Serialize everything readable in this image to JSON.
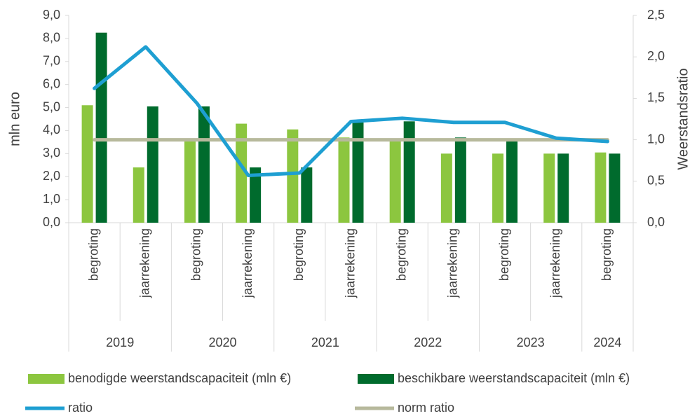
{
  "chart_data": {
    "type": "combo",
    "y_label": "mln euro",
    "y2_label": "Weerstandsratio",
    "groups": [
      {
        "name": "2019",
        "categories": [
          "begroting",
          "jaarrekening"
        ]
      },
      {
        "name": "2020",
        "categories": [
          "begroting",
          "jaarrekening"
        ]
      },
      {
        "name": "2021",
        "categories": [
          "begroting",
          "jaarrekening"
        ]
      },
      {
        "name": "2022",
        "categories": [
          "begroting",
          "jaarrekening"
        ]
      },
      {
        "name": "2023",
        "categories": [
          "begroting",
          "jaarrekening"
        ]
      },
      {
        "name": "2024",
        "categories": [
          "begroting"
        ]
      }
    ],
    "series": [
      {
        "name": "benodigde weerstandscapaciteit (mln €)",
        "type": "bar",
        "color": "#8cc63f",
        "values": [
          5.1,
          2.4,
          3.6,
          4.3,
          4.05,
          3.7,
          3.6,
          3.0,
          3.0,
          3.0,
          3.05
        ]
      },
      {
        "name": "beschikbare weerstandscapaciteit (mln €)",
        "type": "bar",
        "color": "#006b2d",
        "values": [
          8.25,
          5.05,
          5.05,
          2.4,
          2.4,
          4.35,
          4.4,
          3.7,
          3.6,
          3.0,
          3.0
        ]
      },
      {
        "name": "ratio",
        "type": "line",
        "axis": "y2",
        "color": "#1e9fd2",
        "values": [
          1.62,
          2.12,
          1.44,
          0.57,
          0.6,
          1.22,
          1.26,
          1.21,
          1.21,
          1.02,
          0.98
        ]
      },
      {
        "name": "norm ratio",
        "type": "line",
        "axis": "y2",
        "color": "#b7b99c",
        "values": [
          1.0,
          1.0,
          1.0,
          1.0,
          1.0,
          1.0,
          1.0,
          1.0,
          1.0,
          1.0,
          1.0
        ]
      }
    ],
    "ylim": [
      0,
      9
    ],
    "yticks": [
      {
        "value": 0,
        "label": "0,0"
      },
      {
        "value": 1,
        "label": "1,0"
      },
      {
        "value": 2,
        "label": "2,0"
      },
      {
        "value": 3,
        "label": "3,0"
      },
      {
        "value": 4,
        "label": "4,0"
      },
      {
        "value": 5,
        "label": "5,0"
      },
      {
        "value": 6,
        "label": "6,0"
      },
      {
        "value": 7,
        "label": "7,0"
      },
      {
        "value": 8,
        "label": "8,0"
      },
      {
        "value": 9,
        "label": "9,0"
      }
    ],
    "y2lim": [
      0,
      2.5
    ],
    "y2ticks": [
      {
        "value": 0,
        "label": "0,0"
      },
      {
        "value": 0.5,
        "label": "0,5"
      },
      {
        "value": 1,
        "label": "1,0"
      },
      {
        "value": 1.5,
        "label": "1,5"
      },
      {
        "value": 2,
        "label": "2,0"
      },
      {
        "value": 2.5,
        "label": "2,5"
      }
    ],
    "legend": "bottom"
  }
}
